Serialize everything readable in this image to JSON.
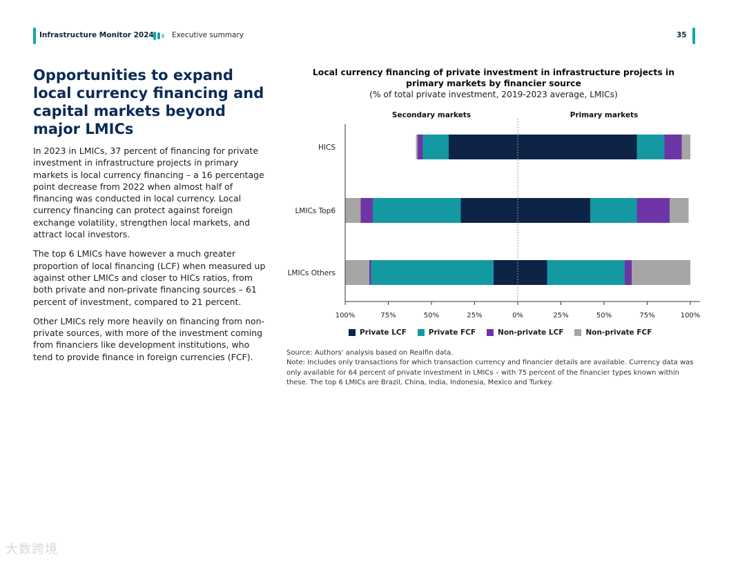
{
  "header": {
    "report_title": "Infrastructure Monitor 2024",
    "section": "Executive summary",
    "page_number": "35",
    "logo_icon": "bars-logo-icon",
    "accent_color": "#14a4a6"
  },
  "main": {
    "heading": "Opportunities to expand local currency financing and capital markets beyond major LMICs",
    "paragraphs": [
      "In 2023 in LMICs, 37 percent of financing for private investment in infrastructure projects in primary markets is local currency financing – a 16 percentage point decrease from 2022 when almost half of financing was conducted in local currency. Local currency financing can protect against foreign exchange volatility, strengthen local markets, and attract local investors.",
      "The top 6 LMICs have however a much greater proportion of local financing (LCF) when measured up against other LMICs and closer to HICs ratios, from both private and non-private financing sources – 61 percent of investment, compared to 21 percent.",
      "Other LMICs rely more heavily on financing from non-private sources, with more of the investment coming from financiers like development institutions, who tend to provide finance in foreign currencies (FCF)."
    ]
  },
  "chart_data": {
    "type": "bar",
    "orientation": "horizontal",
    "stacked": true,
    "diverging": true,
    "title": "Local currency financing of private investment in infrastructure projects in primary markets by financier source",
    "subtitle": "(% of total private investment, 2019-2023 average, LMICs)",
    "panel_labels": {
      "left": "Secondary markets",
      "right": "Primary markets"
    },
    "categories": [
      "HICS",
      "LMICs Top6",
      "LMICs Others"
    ],
    "x_tick_labels": [
      "100%",
      "75%",
      "50%",
      "25%",
      "0%",
      "25%",
      "50%",
      "75%",
      "100%"
    ],
    "xlim": [
      -100,
      100
    ],
    "legend_position": "bottom",
    "series": [
      {
        "name": "Private LCF",
        "color": "#0d2447",
        "secondary": [
          40,
          33,
          14
        ],
        "primary": [
          69,
          42,
          17
        ]
      },
      {
        "name": "Private FCF",
        "color": "#1499a3",
        "secondary": [
          15,
          51,
          71
        ],
        "primary": [
          16,
          27,
          45
        ]
      },
      {
        "name": "Non-private LCF",
        "color": "#6e35a6",
        "secondary": [
          3,
          7,
          1
        ],
        "primary": [
          10,
          19,
          4
        ]
      },
      {
        "name": "Non-private FCF",
        "color": "#a6a6a6",
        "secondary": [
          1,
          9,
          14
        ],
        "primary": [
          5,
          11,
          34
        ]
      }
    ],
    "grid": false
  },
  "notes": {
    "source": "Source: Authors' analysis based on Realfin data.",
    "note": "Note: Includes only transactions for which transaction currency and financier details are available. Currency data was only available for 64 percent of private investment in LMICs – with 75 percent of the financier types known within these. The top 6 LMICs are Brazil, China, India, Indonesia, Mexico and Turkey."
  },
  "watermark": "大数跨境"
}
